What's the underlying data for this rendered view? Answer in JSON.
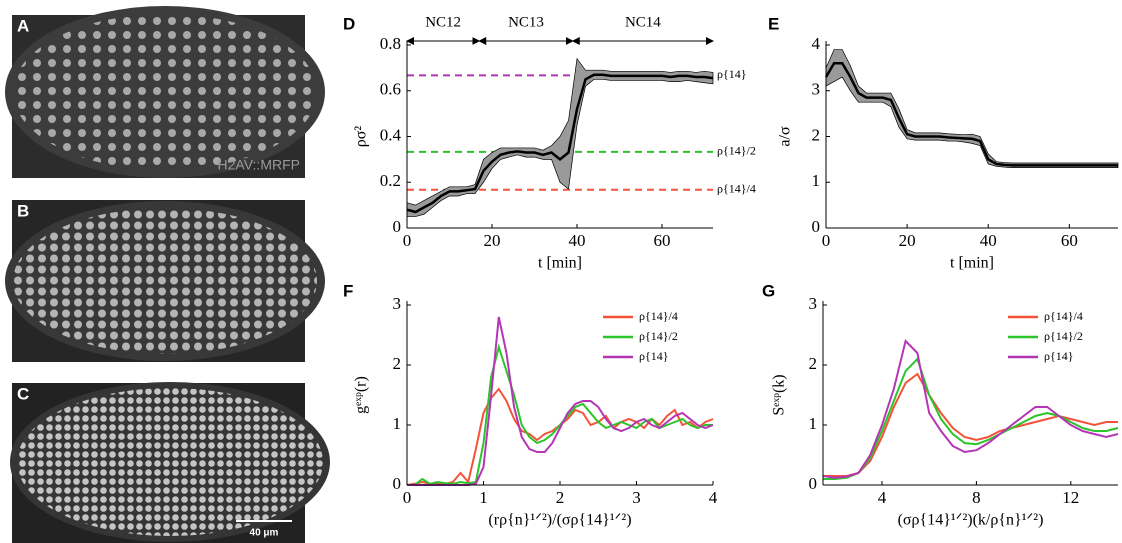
{
  "images": [
    {
      "label": "A",
      "caption": "H2AV::MRFP"
    },
    {
      "label": "B"
    },
    {
      "label": "C",
      "scale_bar": "40 μm"
    }
  ],
  "chart_data": [
    {
      "type": "line",
      "panel": "D",
      "xlabel": "t [min]",
      "ylabel": "ρσ²",
      "x": [
        0,
        2,
        4,
        6,
        8,
        10,
        12,
        14,
        16,
        18,
        20,
        22,
        24,
        26,
        28,
        30,
        32,
        34,
        36,
        38,
        40,
        42,
        44,
        46,
        48,
        50,
        52,
        54,
        56,
        58,
        60,
        62,
        64,
        66,
        68,
        70,
        72
      ],
      "xlim": [
        0,
        72
      ],
      "ylim": [
        0,
        0.8
      ],
      "xticks": [
        0,
        20,
        40,
        60
      ],
      "yticks": [
        0,
        0.2,
        0.4,
        0.6,
        0.8
      ],
      "series": [
        {
          "color": "#000000",
          "band_color": "#9a9a9a",
          "values": [
            0.08,
            0.07,
            0.09,
            0.11,
            0.14,
            0.16,
            0.16,
            0.165,
            0.17,
            0.25,
            0.29,
            0.32,
            0.33,
            0.335,
            0.33,
            0.33,
            0.32,
            0.33,
            0.3,
            0.33,
            0.52,
            0.65,
            0.67,
            0.67,
            0.665,
            0.665,
            0.665,
            0.665,
            0.665,
            0.665,
            0.665,
            0.66,
            0.665,
            0.665,
            0.66,
            0.66,
            0.655
          ],
          "lower": [
            0.05,
            0.05,
            0.06,
            0.09,
            0.12,
            0.14,
            0.14,
            0.15,
            0.15,
            0.2,
            0.26,
            0.3,
            0.31,
            0.32,
            0.31,
            0.31,
            0.3,
            0.3,
            0.2,
            0.17,
            0.45,
            0.62,
            0.65,
            0.65,
            0.645,
            0.645,
            0.645,
            0.645,
            0.645,
            0.645,
            0.645,
            0.64,
            0.64,
            0.645,
            0.64,
            0.635,
            0.63
          ],
          "upper": [
            0.11,
            0.1,
            0.12,
            0.14,
            0.16,
            0.18,
            0.18,
            0.18,
            0.19,
            0.3,
            0.33,
            0.35,
            0.35,
            0.35,
            0.35,
            0.35,
            0.34,
            0.36,
            0.4,
            0.47,
            0.74,
            0.69,
            0.69,
            0.69,
            0.685,
            0.685,
            0.685,
            0.685,
            0.685,
            0.685,
            0.685,
            0.68,
            0.685,
            0.685,
            0.68,
            0.685,
            0.68
          ]
        }
      ],
      "reference_lines": [
        {
          "value": 0.667,
          "label": "ρ{14}",
          "color": "#b535b5"
        },
        {
          "value": 0.333,
          "label": "ρ{14}/2",
          "color": "#2bc42b"
        },
        {
          "value": 0.167,
          "label": "ρ{14}/4",
          "color": "#f4533a"
        }
      ],
      "phases": [
        {
          "label": "NC12",
          "start": 0,
          "end": 17
        },
        {
          "label": "NC13",
          "start": 17,
          "end": 39
        },
        {
          "label": "NC14",
          "start": 39,
          "end": 72
        }
      ]
    },
    {
      "type": "line",
      "panel": "E",
      "xlabel": "t [min]",
      "ylabel": "a/σ",
      "x": [
        0,
        2,
        4,
        6,
        8,
        10,
        12,
        14,
        16,
        18,
        20,
        22,
        24,
        26,
        28,
        30,
        32,
        34,
        36,
        38,
        40,
        42,
        44,
        46,
        48,
        50,
        52,
        54,
        56,
        58,
        60,
        62,
        64,
        66,
        68,
        70,
        72
      ],
      "xlim": [
        0,
        72
      ],
      "ylim": [
        0,
        4
      ],
      "xticks": [
        0,
        20,
        40,
        60
      ],
      "yticks": [
        0,
        1,
        2,
        3,
        4
      ],
      "series": [
        {
          "color": "#000000",
          "band_color": "#9a9a9a",
          "values": [
            3.3,
            3.6,
            3.6,
            3.3,
            2.95,
            2.85,
            2.85,
            2.85,
            2.8,
            2.4,
            2.05,
            2.0,
            2.0,
            2.0,
            2.0,
            1.98,
            1.97,
            1.96,
            1.95,
            1.9,
            1.5,
            1.4,
            1.38,
            1.37,
            1.37,
            1.37,
            1.37,
            1.37,
            1.37,
            1.37,
            1.37,
            1.37,
            1.37,
            1.37,
            1.37,
            1.37,
            1.37
          ],
          "lower": [
            3.1,
            3.2,
            3.3,
            3.0,
            2.75,
            2.75,
            2.75,
            2.75,
            2.65,
            2.2,
            1.95,
            1.92,
            1.92,
            1.92,
            1.92,
            1.9,
            1.9,
            1.88,
            1.85,
            1.8,
            1.4,
            1.35,
            1.33,
            1.32,
            1.32,
            1.32,
            1.32,
            1.32,
            1.32,
            1.32,
            1.32,
            1.32,
            1.32,
            1.32,
            1.32,
            1.32,
            1.32
          ],
          "upper": [
            3.5,
            3.9,
            3.9,
            3.55,
            3.1,
            2.95,
            2.95,
            2.95,
            2.95,
            2.6,
            2.15,
            2.08,
            2.08,
            2.08,
            2.08,
            2.06,
            2.05,
            2.04,
            2.05,
            2.0,
            1.62,
            1.45,
            1.43,
            1.42,
            1.42,
            1.42,
            1.42,
            1.42,
            1.42,
            1.42,
            1.42,
            1.42,
            1.42,
            1.42,
            1.42,
            1.42,
            1.42
          ]
        }
      ]
    },
    {
      "type": "line",
      "panel": "F",
      "xlabel": "(rρ{n}¹ᐟ²)/(σρ{14}¹ᐟ²)",
      "ylabel": "gᵉˣᵖ(r)",
      "x": [
        0,
        0.1,
        0.2,
        0.3,
        0.4,
        0.5,
        0.6,
        0.7,
        0.8,
        0.9,
        1,
        1.1,
        1.2,
        1.3,
        1.4,
        1.5,
        1.6,
        1.7,
        1.8,
        1.9,
        2,
        2.1,
        2.2,
        2.3,
        2.4,
        2.5,
        2.6,
        2.7,
        2.8,
        2.9,
        3,
        3.1,
        3.2,
        3.3,
        3.4,
        3.5,
        3.6,
        3.7,
        3.8,
        3.9,
        4
      ],
      "xlim": [
        0,
        4
      ],
      "ylim": [
        0,
        3
      ],
      "xticks": [
        0,
        1,
        2,
        3,
        4
      ],
      "yticks": [
        0,
        1,
        2,
        3
      ],
      "legend": "upper right",
      "series": [
        {
          "name": "ρ{14}/4",
          "color": "#f4533a",
          "values": [
            0,
            0.02,
            0.05,
            0.02,
            0.03,
            0.02,
            0.05,
            0.2,
            0.05,
            0.6,
            1.2,
            1.45,
            1.6,
            1.4,
            1.1,
            0.9,
            0.85,
            0.75,
            0.85,
            0.9,
            1.0,
            1.1,
            1.25,
            1.2,
            1.0,
            1.05,
            1.15,
            0.95,
            1.05,
            1.1,
            1.05,
            0.95,
            1.1,
            1.0,
            1.15,
            1.25,
            1.0,
            1.05,
            0.95,
            1.05,
            1.1
          ]
        },
        {
          "name": "ρ{14}/2",
          "color": "#2bc42b",
          "values": [
            0,
            0,
            0.1,
            0.02,
            0.05,
            0.03,
            0.02,
            0.05,
            0.03,
            0.05,
            0.7,
            1.8,
            2.3,
            1.9,
            1.5,
            1.0,
            0.8,
            0.7,
            0.75,
            0.85,
            1.0,
            1.15,
            1.3,
            1.35,
            1.2,
            1.05,
            0.95,
            1.0,
            1.05,
            1.0,
            0.95,
            1.05,
            1.1,
            0.95,
            1.0,
            1.05,
            1.1,
            1.0,
            0.95,
            1.0,
            1.0
          ]
        },
        {
          "name": "ρ{14}",
          "color": "#b535b5",
          "values": [
            0,
            0,
            0,
            0,
            0,
            0,
            0,
            0,
            0,
            0.02,
            0.3,
            1.5,
            2.8,
            2.2,
            1.3,
            0.8,
            0.6,
            0.55,
            0.55,
            0.7,
            0.95,
            1.2,
            1.35,
            1.4,
            1.4,
            1.3,
            1.1,
            0.95,
            0.9,
            0.95,
            1.05,
            1.1,
            1.0,
            0.95,
            1.05,
            1.15,
            1.2,
            1.1,
            1.0,
            0.95,
            1.0
          ]
        }
      ]
    },
    {
      "type": "line",
      "panel": "G",
      "xlabel": "(σρ{14}¹ᐟ²)(k/ρ{n}¹ᐟ²)",
      "ylabel": "Sᵉˣᵖ(k)",
      "x": [
        1.5,
        2,
        2.5,
        3,
        3.5,
        4,
        4.5,
        5,
        5.5,
        6,
        6.5,
        7,
        7.5,
        8,
        8.5,
        9,
        9.5,
        10,
        10.5,
        11,
        11.5,
        12,
        12.5,
        13,
        13.5,
        14
      ],
      "xlim": [
        1.5,
        14
      ],
      "ylim": [
        0,
        3
      ],
      "xticks": [
        4,
        8,
        12
      ],
      "yticks": [
        0,
        1,
        2,
        3
      ],
      "legend": "upper right",
      "series": [
        {
          "name": "ρ{14}/4",
          "color": "#f4533a",
          "values": [
            0.15,
            0.15,
            0.15,
            0.2,
            0.4,
            0.8,
            1.3,
            1.7,
            1.85,
            1.5,
            1.2,
            0.95,
            0.8,
            0.75,
            0.8,
            0.9,
            0.95,
            1.0,
            1.05,
            1.1,
            1.15,
            1.1,
            1.05,
            1.0,
            1.05,
            1.05
          ]
        },
        {
          "name": "ρ{14}/2",
          "color": "#2bc42b",
          "values": [
            0.1,
            0.1,
            0.12,
            0.2,
            0.45,
            0.9,
            1.4,
            1.9,
            2.1,
            1.5,
            1.1,
            0.85,
            0.7,
            0.68,
            0.75,
            0.85,
            0.95,
            1.05,
            1.15,
            1.2,
            1.15,
            1.05,
            0.95,
            0.9,
            0.9,
            0.95
          ]
        },
        {
          "name": "ρ{14}",
          "color": "#b535b5",
          "values": [
            0.15,
            0.12,
            0.14,
            0.2,
            0.5,
            1.0,
            1.6,
            2.4,
            2.2,
            1.2,
            0.9,
            0.65,
            0.55,
            0.58,
            0.7,
            0.85,
            1.0,
            1.15,
            1.3,
            1.3,
            1.15,
            1.0,
            0.9,
            0.85,
            0.8,
            0.85
          ]
        }
      ]
    }
  ]
}
